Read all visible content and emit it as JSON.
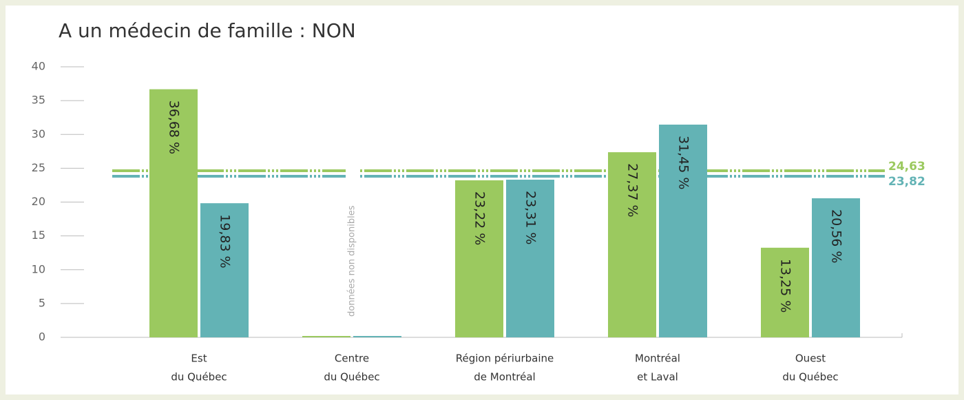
{
  "chart_data": {
    "type": "bar",
    "title": "A un médecin de famille : NON",
    "categories": [
      [
        "Est",
        "du Québec"
      ],
      [
        "Centre",
        "du Québec"
      ],
      [
        "Région périurbaine",
        "de Montréal"
      ],
      [
        "Montréal",
        "et Laval"
      ],
      [
        "Ouest",
        "du Québec"
      ]
    ],
    "series": [
      {
        "color": "#9bc95f",
        "values": [
          36.68,
          null,
          23.22,
          27.37,
          13.25
        ],
        "value_labels": [
          "36,68 %",
          null,
          "23,22 %",
          "27,37 %",
          "13,25 %"
        ]
      },
      {
        "color": "#63b3b5",
        "values": [
          19.83,
          null,
          23.31,
          31.45,
          20.56
        ],
        "value_labels": [
          "19,83 %",
          null,
          "23,31 %",
          "31,45 %",
          "20,56 %"
        ]
      }
    ],
    "reference_lines": [
      {
        "value": 24.63,
        "label": "24,63",
        "color": "#9bc95f"
      },
      {
        "value": 23.82,
        "label": "23,82",
        "color": "#63b3b5"
      }
    ],
    "annotations": [
      {
        "category": 1,
        "text": "données non disponibles"
      }
    ],
    "ylim": [
      0,
      40
    ],
    "yticks": [
      0,
      5,
      10,
      15,
      20,
      25,
      30,
      35,
      40
    ]
  }
}
